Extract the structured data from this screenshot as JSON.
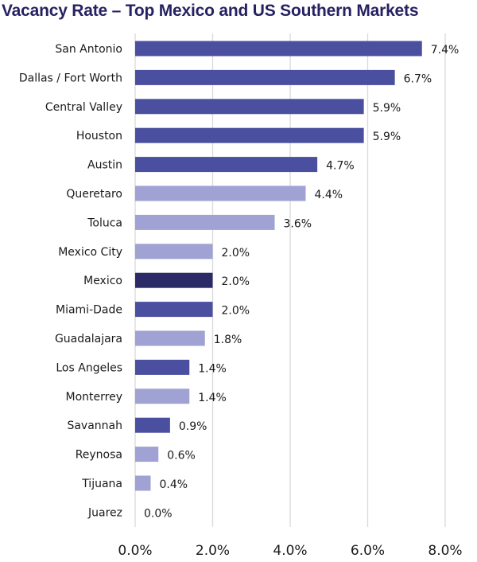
{
  "chart_data": {
    "type": "bar",
    "orientation": "horizontal",
    "title": "Vacancy Rate – Top Mexico and US Southern Markets",
    "xlabel": "",
    "ylabel": "",
    "xlim": [
      0,
      8
    ],
    "grid": "vertical",
    "legend": "none",
    "categories": [
      "San Antonio",
      "Dallas / Fort Worth",
      "Central Valley",
      "Houston",
      "Austin",
      "Queretaro",
      "Toluca",
      "Mexico City",
      "Mexico",
      "Miami-Dade",
      "Guadalajara",
      "Los Angeles",
      "Monterrey",
      "Savannah",
      "Reynosa",
      "Tijuana",
      "Juarez"
    ],
    "values": [
      7.4,
      6.7,
      5.9,
      5.9,
      4.7,
      4.4,
      3.6,
      2.0,
      2.0,
      2.0,
      1.8,
      1.4,
      1.4,
      0.9,
      0.6,
      0.4,
      0.0
    ],
    "value_labels": [
      "7.4%",
      "6.7%",
      "5.9%",
      "5.9%",
      "4.7%",
      "4.4%",
      "3.6%",
      "2.0%",
      "2.0%",
      "2.0%",
      "1.8%",
      "1.4%",
      "1.4%",
      "0.9%",
      "0.6%",
      "0.4%",
      "0.0%"
    ],
    "bar_groups": [
      "us",
      "us",
      "us",
      "us",
      "us",
      "mx",
      "mx",
      "mx",
      "total",
      "us",
      "mx",
      "us",
      "mx",
      "us",
      "mx",
      "mx",
      "mx"
    ],
    "colors": {
      "us": "#4a4f9f",
      "mx": "#9fa2d3",
      "total": "#2b2a66",
      "grid": "#d9d9d9"
    },
    "x_ticks": [
      0,
      2,
      4,
      6,
      8
    ],
    "x_tick_labels": [
      "0.0%",
      "2.0%",
      "4.0%",
      "6.0%",
      "8.0%"
    ]
  }
}
